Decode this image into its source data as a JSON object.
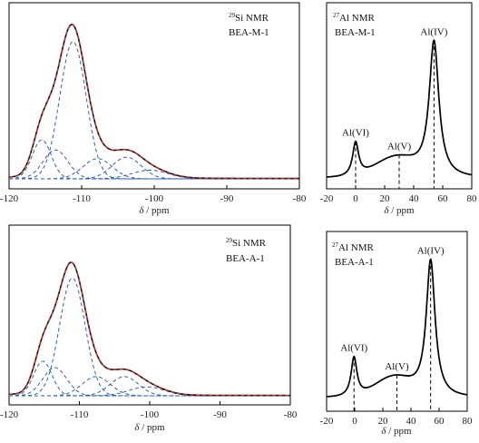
{
  "chart_data": [
    {
      "id": "si_top",
      "type": "line",
      "nucleus_label": "29Si NMR",
      "nucleus_sup": "29",
      "nucleus_rest": "Si NMR",
      "sample": "BEA-M-1",
      "xlabel_italic": "δ",
      "xlabel_rest": " / ppm",
      "xlim": [
        -120,
        -80
      ],
      "xticks": [
        "-120",
        "-110",
        "-100",
        "-90",
        "-80"
      ],
      "xtick_values": [
        -120,
        -110,
        -100,
        -90,
        -80
      ],
      "ylim": [
        0,
        1.05
      ],
      "colors": {
        "experimental": "#d22f27",
        "fit": "#111111",
        "components": "#2d5fb8"
      },
      "components": [
        {
          "center": -115.5,
          "height": 0.27,
          "width": 1.3
        },
        {
          "center": -113.6,
          "height": 0.2,
          "width": 1.7
        },
        {
          "center": -111.2,
          "height": 0.95,
          "width": 1.8
        },
        {
          "center": -107.8,
          "height": 0.14,
          "width": 2.0
        },
        {
          "center": -103.8,
          "height": 0.15,
          "width": 2.0
        },
        {
          "center": -100.6,
          "height": 0.06,
          "width": 2.5
        }
      ]
    },
    {
      "id": "al_top",
      "type": "line",
      "nucleus_label": "27Al NMR",
      "nucleus_sup": "27",
      "nucleus_rest": "Al NMR",
      "sample": "BEA-M-1",
      "xlabel_italic": "δ",
      "xlabel_rest": " / ppm",
      "xlim": [
        -20,
        80
      ],
      "xticks": [
        "-20",
        "0",
        "20",
        "40",
        "60",
        "80"
      ],
      "xtick_values": [
        -20,
        0,
        20,
        40,
        60,
        80
      ],
      "ylim": [
        0,
        1.05
      ],
      "peaks": [
        {
          "label": "Al(VI)",
          "position": 0
        },
        {
          "label": "Al(V)",
          "position": 30
        },
        {
          "label": "Al(IV)",
          "position": 54
        }
      ],
      "components": [
        {
          "center": 0,
          "height": 0.24,
          "width": 2.5,
          "shape": "lorentz"
        },
        {
          "center": 28,
          "height": 0.14,
          "width": 14,
          "shape": "gauss"
        },
        {
          "center": 54,
          "height": 0.97,
          "width": 4.0,
          "shape": "lorentz"
        }
      ]
    },
    {
      "id": "si_bottom",
      "type": "line",
      "nucleus_label": "29Si NMR",
      "nucleus_sup": "29",
      "nucleus_rest": "Si NMR",
      "sample": "BEA-A-1",
      "xlabel_italic": "δ",
      "xlabel_rest": " / ppm",
      "xlim": [
        -120,
        -80
      ],
      "xticks": [
        "-120",
        "-110",
        "-100",
        "-90",
        "-80"
      ],
      "xtick_values": [
        -120,
        -110,
        -100,
        -90,
        -80
      ],
      "ylim": [
        0,
        1.05
      ],
      "colors": {
        "experimental": "#d22f27",
        "fit": "#111111",
        "components": "#2d5fb8"
      },
      "components": [
        {
          "center": -115.2,
          "height": 0.27,
          "width": 1.3
        },
        {
          "center": -113.5,
          "height": 0.22,
          "width": 1.7
        },
        {
          "center": -111.0,
          "height": 0.92,
          "width": 1.8
        },
        {
          "center": -107.6,
          "height": 0.15,
          "width": 2.0
        },
        {
          "center": -103.6,
          "height": 0.15,
          "width": 2.0
        },
        {
          "center": -100.4,
          "height": 0.07,
          "width": 2.5
        }
      ]
    },
    {
      "id": "al_bottom",
      "type": "line",
      "nucleus_label": "27Al NMR",
      "nucleus_sup": "27",
      "nucleus_rest": "Al NMR",
      "sample": "BEA-A-1",
      "xlabel_italic": "δ",
      "xlabel_rest": " / ppm",
      "xlim": [
        -20,
        80
      ],
      "xticks": [
        "-20",
        "0",
        "20",
        "40",
        "60",
        "80"
      ],
      "xtick_values": [
        -20,
        0,
        20,
        40,
        60,
        80
      ],
      "ylim": [
        0,
        1.05
      ],
      "peaks": [
        {
          "label": "Al(VI)",
          "position": -0.5
        },
        {
          "label": "Al(V)",
          "position": 30
        },
        {
          "label": "Al(IV)",
          "position": 54
        }
      ],
      "components": [
        {
          "center": -0.5,
          "height": 0.28,
          "width": 2.5,
          "shape": "lorentz"
        },
        {
          "center": 28,
          "height": 0.14,
          "width": 13,
          "shape": "gauss"
        },
        {
          "center": 54,
          "height": 0.98,
          "width": 3.8,
          "shape": "lorentz"
        }
      ]
    }
  ]
}
